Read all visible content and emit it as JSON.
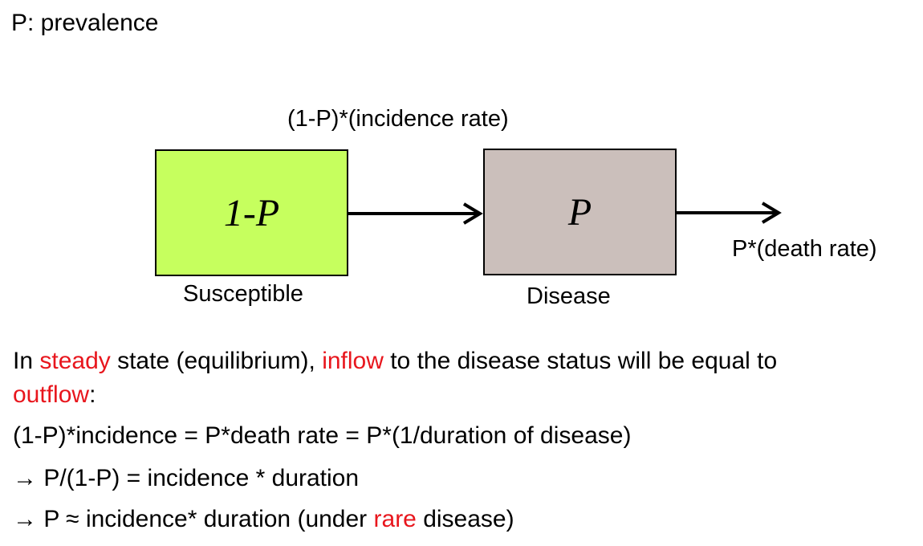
{
  "title": "P: prevalence",
  "diagram": {
    "inflow_label": "(1-P)*(incidence rate)",
    "susceptible_box": {
      "text": "1-P",
      "label": "Susceptible",
      "color": "#c6ff5e"
    },
    "disease_box": {
      "text": "P",
      "label": "Disease",
      "color": "#cbbfbb"
    },
    "outflow_label": "P*(death rate)"
  },
  "explanation": {
    "line1_prefix": "In ",
    "line1_steady": "steady",
    "line1_mid": " state (equilibrium), ",
    "line1_inflow": "inflow",
    "line1_suffix": " to the disease status will be equal to",
    "line2_outflow": "outflow",
    "line2_colon": ":",
    "line3": "(1-P)*incidence = P*death rate = P*(1/duration of disease)",
    "line4": "→ P/(1-P) = incidence * duration",
    "line5_prefix": "→ P ≈ incidence* duration (under ",
    "line5_rare": "rare",
    "line5_suffix": " disease)"
  },
  "colors": {
    "highlight": "#e8161d"
  }
}
